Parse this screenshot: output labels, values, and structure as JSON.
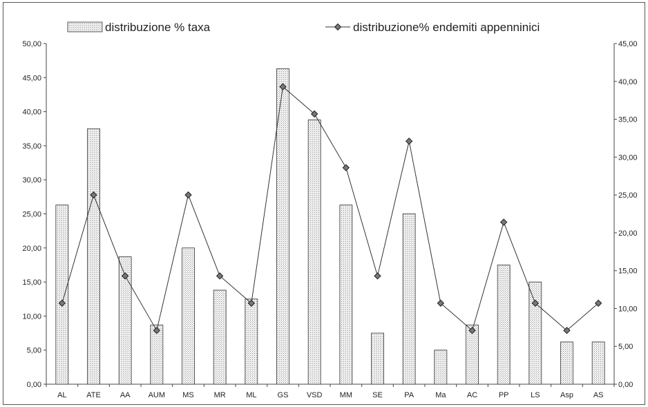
{
  "chart_data": {
    "type": "bar",
    "categories": [
      "AL",
      "ATE",
      "AA",
      "AUM",
      "MS",
      "MR",
      "ML",
      "GS",
      "VSD",
      "MM",
      "SE",
      "PA",
      "Ma",
      "AC",
      "PP",
      "LS",
      "Asp",
      "AS"
    ],
    "series": [
      {
        "name": "distribuzione % taxa",
        "type": "bar",
        "axis": "left",
        "values": [
          26.3,
          37.5,
          18.7,
          8.7,
          20.0,
          13.8,
          12.5,
          46.3,
          38.8,
          26.3,
          7.5,
          25.0,
          5.0,
          8.7,
          17.5,
          15.0,
          6.2,
          6.2
        ]
      },
      {
        "name": "distribuzione% endemiti appenninici",
        "type": "line",
        "axis": "right",
        "values": [
          10.7,
          25.0,
          14.3,
          7.1,
          25.0,
          14.3,
          10.7,
          39.3,
          35.7,
          28.6,
          14.3,
          32.1,
          10.7,
          7.1,
          21.4,
          10.7,
          7.1,
          10.7
        ]
      }
    ],
    "y_left": {
      "ylim": [
        0,
        50
      ],
      "ticks": [
        "0,00",
        "5,00",
        "10,00",
        "15,00",
        "20,00",
        "25,00",
        "30,00",
        "35,00",
        "40,00",
        "45,00",
        "50,00"
      ]
    },
    "y_right": {
      "ylim": [
        0,
        45
      ],
      "ticks": [
        "0,00",
        "5,00",
        "10,00",
        "15,00",
        "20,00",
        "25,00",
        "30,00",
        "35,00",
        "40,00",
        "45,00"
      ]
    },
    "grid": false,
    "legend_position": "top"
  }
}
